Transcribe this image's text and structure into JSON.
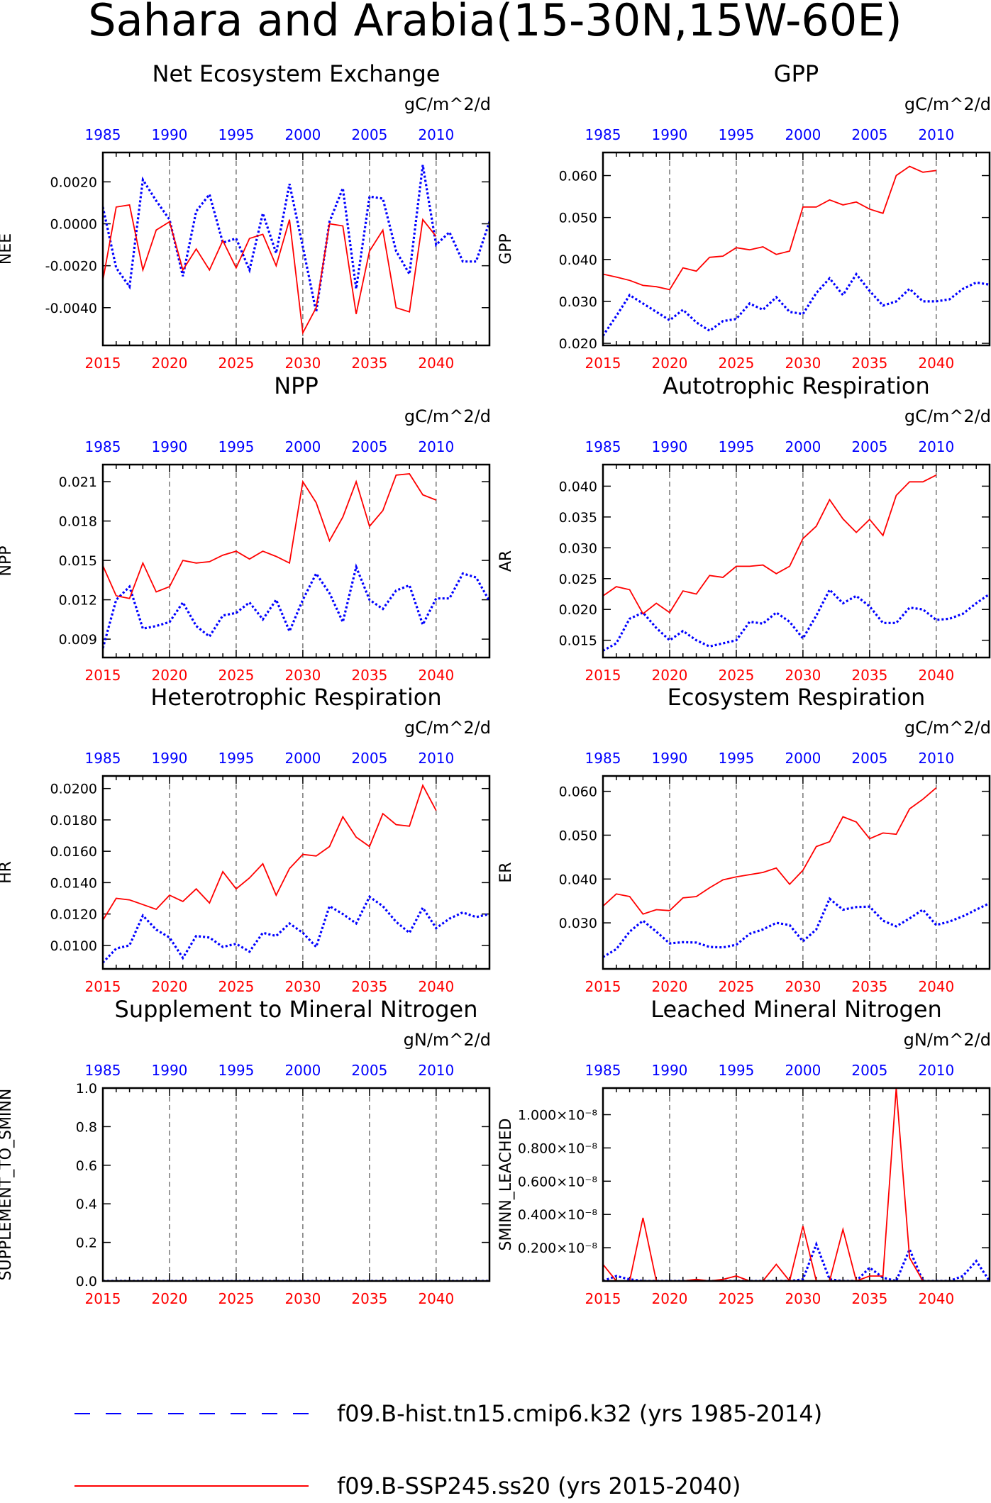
{
  "page_title": "Sahara and Arabia(15-30N,15W-60E)",
  "colors": {
    "hist": "#0000ff",
    "ssp": "#ff0000",
    "axis": "#000000",
    "grid": "#555555"
  },
  "top_axis_ticks": [
    "1985",
    "1990",
    "1995",
    "2000",
    "2005",
    "2010"
  ],
  "bottom_axis_ticks": [
    "2015",
    "2020",
    "2025",
    "2030",
    "2035",
    "2040"
  ],
  "legend": {
    "hist_label": "f09.B-hist.tn15.cmip6.k32 (yrs 1985-2014)",
    "ssp_label": "f09.B-SSP245.ss20 (yrs 2015-2040)"
  },
  "chart_data": [
    {
      "type": "line",
      "title": "Net Ecosystem Exchange",
      "ylabel": "NEE",
      "units": "gC/m^2/d",
      "ylim": [
        -0.0058,
        0.0034
      ],
      "yticks": [
        -0.004,
        -0.002,
        0.0,
        0.002
      ],
      "ytick_labels": [
        "-0.0040",
        "-0.0020",
        "0.0000",
        "0.0020"
      ],
      "vgrid_top_years": [
        1990,
        1995,
        2000,
        2005,
        2010
      ],
      "series": [
        {
          "key": "hist",
          "x_start": 1985,
          "values": [
            0.0008,
            -0.0021,
            -0.003,
            0.0021,
            0.0011,
            0.0002,
            -0.0025,
            0.0006,
            0.0014,
            -0.0009,
            -0.0007,
            -0.0022,
            0.0005,
            -0.0014,
            0.0019,
            -0.0011,
            -0.0042,
            0.0001,
            0.0017,
            -0.0031,
            0.0013,
            0.0012,
            -0.0013,
            -0.0024,
            0.0028,
            -0.001,
            -0.0004,
            -0.0018,
            -0.0018,
            0.0001
          ]
        },
        {
          "key": "ssp",
          "x_start": 2015,
          "values": [
            -0.0027,
            0.0008,
            0.0009,
            -0.0022,
            -0.0003,
            0.0001,
            -0.0022,
            -0.0012,
            -0.0022,
            -0.0008,
            -0.0021,
            -0.0007,
            -0.0005,
            -0.002,
            0.0002,
            -0.0052,
            -0.004,
            0.0,
            -0.0001,
            -0.0043,
            -0.0013,
            -0.0003,
            -0.004,
            -0.0042,
            0.0002,
            -0.0006
          ]
        }
      ]
    },
    {
      "type": "line",
      "title": "GPP",
      "ylabel": "GPP",
      "units": "gC/m^2/d",
      "ylim": [
        0.0195,
        0.0655
      ],
      "yticks": [
        0.02,
        0.03,
        0.04,
        0.05,
        0.06
      ],
      "ytick_labels": [
        "0.020",
        "0.030",
        "0.040",
        "0.050",
        "0.060"
      ],
      "vgrid_top_years": [
        1990,
        1995,
        2000,
        2005,
        2010
      ],
      "series": [
        {
          "key": "hist",
          "x_start": 1985,
          "values": [
            0.0218,
            0.0265,
            0.0315,
            0.0295,
            0.0275,
            0.0255,
            0.028,
            0.025,
            0.023,
            0.0253,
            0.0258,
            0.0295,
            0.028,
            0.031,
            0.0275,
            0.027,
            0.032,
            0.0355,
            0.0315,
            0.0365,
            0.0325,
            0.029,
            0.03,
            0.033,
            0.03,
            0.03,
            0.0305,
            0.033,
            0.0345,
            0.034
          ]
        },
        {
          "key": "ssp",
          "x_start": 2015,
          "values": [
            0.0365,
            0.0358,
            0.035,
            0.0338,
            0.0335,
            0.0328,
            0.038,
            0.0372,
            0.0405,
            0.0408,
            0.0428,
            0.0423,
            0.043,
            0.0412,
            0.042,
            0.0525,
            0.0525,
            0.0542,
            0.053,
            0.0537,
            0.052,
            0.051,
            0.06,
            0.0622,
            0.0608,
            0.0612
          ]
        }
      ]
    },
    {
      "type": "line",
      "title": "NPP",
      "ylabel": "NPP",
      "units": "gC/m^2/d",
      "ylim": [
        0.0076,
        0.0223
      ],
      "yticks": [
        0.009,
        0.012,
        0.015,
        0.018,
        0.021
      ],
      "ytick_labels": [
        "0.009",
        "0.012",
        "0.015",
        "0.018",
        "0.021"
      ],
      "vgrid_top_years": [
        1990,
        1995,
        2000,
        2005,
        2010
      ],
      "series": [
        {
          "key": "hist",
          "x_start": 1985,
          "values": [
            0.0083,
            0.012,
            0.013,
            0.0098,
            0.01,
            0.0103,
            0.0118,
            0.01,
            0.0092,
            0.0108,
            0.011,
            0.0118,
            0.0105,
            0.012,
            0.0096,
            0.012,
            0.014,
            0.0125,
            0.0103,
            0.0145,
            0.012,
            0.0113,
            0.0127,
            0.0131,
            0.0101,
            0.0121,
            0.0121,
            0.014,
            0.0137,
            0.0119
          ]
        },
        {
          "key": "ssp",
          "x_start": 2015,
          "values": [
            0.0146,
            0.0123,
            0.0121,
            0.0148,
            0.0126,
            0.013,
            0.015,
            0.0148,
            0.0149,
            0.0154,
            0.0157,
            0.0151,
            0.0157,
            0.0153,
            0.0148,
            0.021,
            0.0194,
            0.0165,
            0.0183,
            0.021,
            0.0176,
            0.0188,
            0.0215,
            0.0216,
            0.02,
            0.0196
          ]
        }
      ]
    },
    {
      "type": "line",
      "title": "Autotrophic Respiration",
      "ylabel": "AR",
      "units": "gC/m^2/d",
      "ylim": [
        0.0122,
        0.0435
      ],
      "yticks": [
        0.015,
        0.02,
        0.025,
        0.03,
        0.035,
        0.04
      ],
      "ytick_labels": [
        "0.015",
        "0.020",
        "0.025",
        "0.030",
        "0.035",
        "0.040"
      ],
      "vgrid_top_years": [
        1990,
        1995,
        2000,
        2005,
        2010
      ],
      "series": [
        {
          "key": "hist",
          "x_start": 1985,
          "values": [
            0.0133,
            0.0145,
            0.0185,
            0.0195,
            0.017,
            0.015,
            0.0165,
            0.015,
            0.014,
            0.0145,
            0.015,
            0.018,
            0.0177,
            0.0195,
            0.018,
            0.0153,
            0.019,
            0.0232,
            0.021,
            0.0222,
            0.0205,
            0.0178,
            0.0178,
            0.0203,
            0.02,
            0.0183,
            0.0185,
            0.0193,
            0.021,
            0.0225
          ]
        },
        {
          "key": "ssp",
          "x_start": 2015,
          "values": [
            0.0222,
            0.0237,
            0.0232,
            0.0193,
            0.021,
            0.0195,
            0.023,
            0.0225,
            0.0255,
            0.0252,
            0.027,
            0.027,
            0.0272,
            0.0258,
            0.027,
            0.0315,
            0.0335,
            0.0378,
            0.0347,
            0.0325,
            0.0346,
            0.032,
            0.0385,
            0.0407,
            0.0407,
            0.0418
          ]
        }
      ]
    },
    {
      "type": "line",
      "title": "Heterotrophic Respiration",
      "ylabel": "HR",
      "units": "gC/m^2/d",
      "ylim": [
        0.0085,
        0.0208
      ],
      "yticks": [
        0.01,
        0.012,
        0.014,
        0.016,
        0.018,
        0.02
      ],
      "ytick_labels": [
        "0.0100",
        "0.0120",
        "0.0140",
        "0.0160",
        "0.0180",
        "0.0200"
      ],
      "vgrid_top_years": [
        1990,
        1995,
        2000,
        2005,
        2010
      ],
      "series": [
        {
          "key": "hist",
          "x_start": 1985,
          "values": [
            0.0089,
            0.0098,
            0.01,
            0.0119,
            0.011,
            0.0105,
            0.0092,
            0.0106,
            0.0105,
            0.0099,
            0.0101,
            0.0096,
            0.0108,
            0.0106,
            0.0114,
            0.0108,
            0.0099,
            0.0125,
            0.012,
            0.0114,
            0.0131,
            0.0125,
            0.0115,
            0.0108,
            0.0124,
            0.0111,
            0.0117,
            0.0121,
            0.0118,
            0.012
          ]
        },
        {
          "key": "ssp",
          "x_start": 2015,
          "values": [
            0.0116,
            0.013,
            0.0129,
            0.0126,
            0.0123,
            0.0132,
            0.0128,
            0.0136,
            0.0127,
            0.0147,
            0.0136,
            0.0143,
            0.0152,
            0.0132,
            0.0149,
            0.0158,
            0.0157,
            0.0163,
            0.0182,
            0.0169,
            0.0163,
            0.0184,
            0.0177,
            0.0176,
            0.0202,
            0.0186
          ]
        }
      ]
    },
    {
      "type": "line",
      "title": "Ecosystem Respiration",
      "ylabel": "ER",
      "units": "gC/m^2/d",
      "ylim": [
        0.0195,
        0.0635
      ],
      "yticks": [
        0.03,
        0.04,
        0.05,
        0.06
      ],
      "ytick_labels": [
        "0.030",
        "0.040",
        "0.050",
        "0.060"
      ],
      "vgrid_top_years": [
        1990,
        1995,
        2000,
        2005,
        2010
      ],
      "series": [
        {
          "key": "hist",
          "x_start": 1985,
          "values": [
            0.0222,
            0.024,
            0.028,
            0.0305,
            0.028,
            0.0253,
            0.0256,
            0.0255,
            0.0245,
            0.0244,
            0.025,
            0.0275,
            0.0285,
            0.03,
            0.0295,
            0.0258,
            0.0285,
            0.0355,
            0.033,
            0.0336,
            0.0337,
            0.0305,
            0.0292,
            0.031,
            0.033,
            0.0295,
            0.0303,
            0.0315,
            0.033,
            0.0345
          ]
        },
        {
          "key": "ssp",
          "x_start": 2015,
          "values": [
            0.0338,
            0.0366,
            0.036,
            0.032,
            0.033,
            0.0328,
            0.0357,
            0.036,
            0.038,
            0.0398,
            0.0405,
            0.041,
            0.0415,
            0.0425,
            0.0388,
            0.042,
            0.0474,
            0.0485,
            0.0542,
            0.053,
            0.0492,
            0.0505,
            0.0502,
            0.056,
            0.0582,
            0.0608
          ]
        }
      ]
    },
    {
      "type": "line",
      "title": "Supplement to Mineral Nitrogen",
      "ylabel": "SUPPLEMENT_TO_SMINN",
      "units": "gN/m^2/d",
      "ylim": [
        0,
        1.0
      ],
      "yticks": [
        0.0,
        0.2,
        0.4,
        0.6,
        0.8,
        1.0
      ],
      "ytick_labels": [
        "0.0",
        "0.2",
        "0.4",
        "0.6",
        "0.8",
        "1.0"
      ],
      "vgrid_top_years": [
        1990,
        1995,
        2000,
        2005,
        2010
      ],
      "series": [
        {
          "key": "hist",
          "x_start": 1985,
          "values": [
            0,
            0,
            0,
            0,
            0,
            0,
            0,
            0,
            0,
            0,
            0,
            0,
            0,
            0,
            0,
            0,
            0,
            0,
            0,
            0,
            0,
            0,
            0,
            0,
            0,
            0,
            0,
            0,
            0,
            0
          ]
        },
        {
          "key": "ssp",
          "x_start": 2015,
          "values": [
            0,
            0,
            0,
            0,
            0,
            0,
            0,
            0,
            0,
            0,
            0,
            0,
            0,
            0,
            0,
            0,
            0,
            0,
            0,
            0,
            0,
            0,
            0,
            0,
            0,
            0
          ]
        }
      ]
    },
    {
      "type": "line",
      "title": "Leached Mineral Nitrogen",
      "ylabel": "SMINN_LEACHED",
      "units": "gN/m^2/d",
      "ylim": [
        0,
        1.16e-08
      ],
      "yticks": [
        2e-09,
        4e-09,
        6e-09,
        8e-09,
        1e-08
      ],
      "ytick_labels": [
        "0.200×10⁻⁸",
        "0.400×10⁻⁸",
        "0.600×10⁻⁸",
        "0.800×10⁻⁸",
        "1.000×10⁻⁸"
      ],
      "vgrid_top_years": [
        1990,
        1995,
        2000,
        2005,
        2010
      ],
      "series": [
        {
          "key": "hist",
          "x_start": 1985,
          "values": [
            0,
            3e-10,
            1e-10,
            0,
            0,
            0,
            0,
            0,
            0,
            0,
            0,
            0,
            0,
            0,
            0,
            1e-10,
            2.2e-09,
            1e-10,
            0,
            0,
            8e-10,
            2e-10,
            0,
            1.9e-09,
            0,
            0,
            0,
            3e-10,
            1.2e-09,
            0
          ]
        },
        {
          "key": "ssp",
          "x_start": 2015,
          "values": [
            1e-09,
            0,
            0,
            3.8e-09,
            0,
            0,
            0,
            1e-10,
            0,
            1e-10,
            3e-10,
            0,
            0,
            1e-09,
            0,
            3.3e-09,
            0,
            0,
            3.1e-09,
            0,
            3e-10,
            3e-10,
            1.16e-08,
            1.4e-09,
            0,
            0
          ]
        }
      ]
    }
  ]
}
